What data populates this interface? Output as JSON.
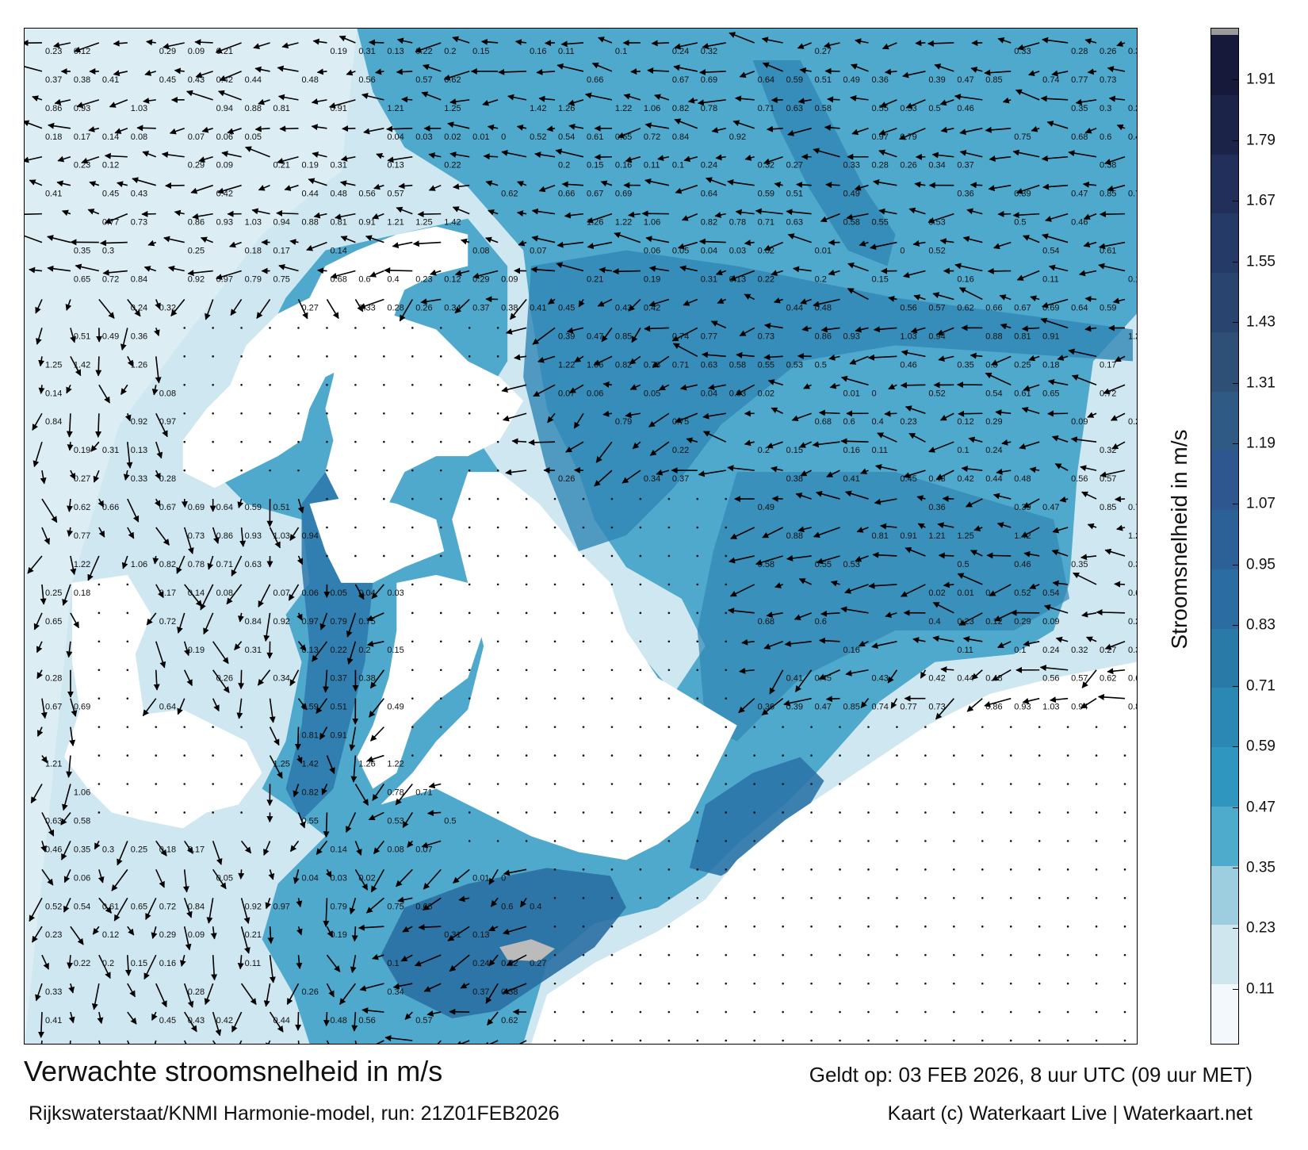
{
  "title": "Verwachte stroomsnelheid in m/s",
  "valid_time": "Geldt op: 03 FEB 2026, 8 uur UTC (09 uur MET)",
  "model_run": "Rijkswaterstaat/KNMI Harmonie-model, run: 21Z01FEB2026",
  "credit": "Kaart (c) Waterkaart Live | Waterkaart.net",
  "colorbar": {
    "label": "Stroomsnelheid in m/s",
    "ticks": [
      "0.11",
      "0.23",
      "0.35",
      "0.47",
      "0.59",
      "0.71",
      "0.83",
      "0.95",
      "1.07",
      "1.19",
      "1.31",
      "1.43",
      "1.55",
      "1.67",
      "1.79",
      "1.91"
    ],
    "range": [
      0,
      2.0
    ],
    "colors": [
      "#f2f8fb",
      "#cfe6ef",
      "#9ccee0",
      "#4fabcc",
      "#2f96bf",
      "#2b88b3",
      "#2a7aa8",
      "#2b6da0",
      "#2c6198",
      "#2e568f",
      "#2f5a84",
      "#2e5077",
      "#28446f",
      "#263a68",
      "#212f5a",
      "#1b2448",
      "#16193a"
    ]
  },
  "icons": {
    "arrow": "current-arrow-icon"
  },
  "speed_labels": [
    {
      "t": "0.23"
    },
    {
      "t": "0.12"
    },
    {
      "t": "0.29"
    },
    {
      "t": "0.09"
    },
    {
      "t": "0.21"
    },
    {
      "t": "0.19"
    },
    {
      "t": "0.31"
    },
    {
      "t": "0.13"
    },
    {
      "t": "0.22"
    },
    {
      "t": "0.2"
    },
    {
      "t": "0.15"
    },
    {
      "t": "0.16"
    },
    {
      "t": "0.11"
    },
    {
      "t": "0.1"
    },
    {
      "t": "0.24"
    },
    {
      "t": "0.32"
    },
    {
      "t": "0.27"
    },
    {
      "t": "0.33"
    },
    {
      "t": "0.28"
    },
    {
      "t": "0.26"
    },
    {
      "t": "0.34"
    },
    {
      "t": "0.37"
    },
    {
      "t": "0.38"
    },
    {
      "t": "0.41"
    },
    {
      "t": "0.45"
    },
    {
      "t": "0.43"
    },
    {
      "t": "0.42"
    },
    {
      "t": "0.44"
    },
    {
      "t": "0.48"
    },
    {
      "t": "0.56"
    },
    {
      "t": "0.57"
    },
    {
      "t": "0.62"
    },
    {
      "t": "0.66"
    },
    {
      "t": "0.67"
    },
    {
      "t": "0.69"
    },
    {
      "t": "0.64"
    },
    {
      "t": "0.59"
    },
    {
      "t": "0.51"
    },
    {
      "t": "0.49"
    },
    {
      "t": "0.36"
    },
    {
      "t": "0.39"
    },
    {
      "t": "0.47"
    },
    {
      "t": "0.85"
    },
    {
      "t": "0.74"
    },
    {
      "t": "0.77"
    },
    {
      "t": "0.73"
    },
    {
      "t": "0.86"
    },
    {
      "t": "0.93"
    },
    {
      "t": "1.03"
    },
    {
      "t": "0.94"
    },
    {
      "t": "0.88"
    },
    {
      "t": "0.81"
    },
    {
      "t": "0.91"
    },
    {
      "t": "1.21"
    },
    {
      "t": "1.25"
    },
    {
      "t": "1.42"
    },
    {
      "t": "1.26"
    },
    {
      "t": "1.22"
    },
    {
      "t": "1.06"
    },
    {
      "t": "0.82"
    },
    {
      "t": "0.78"
    },
    {
      "t": "0.71"
    },
    {
      "t": "0.63"
    },
    {
      "t": "0.58"
    },
    {
      "t": "0.55"
    },
    {
      "t": "0.53"
    },
    {
      "t": "0.5"
    },
    {
      "t": "0.46"
    },
    {
      "t": "0.35"
    },
    {
      "t": "0.3"
    },
    {
      "t": "0.25"
    },
    {
      "t": "0.18"
    },
    {
      "t": "0.17"
    },
    {
      "t": "0.14"
    },
    {
      "t": "0.08"
    },
    {
      "t": "0.07"
    },
    {
      "t": "0.06"
    },
    {
      "t": "0.05"
    },
    {
      "t": "0.04"
    },
    {
      "t": "0.03"
    },
    {
      "t": "0.02"
    },
    {
      "t": "0.01"
    },
    {
      "t": "0"
    },
    {
      "t": "0.52"
    },
    {
      "t": "0.54"
    },
    {
      "t": "0.61"
    },
    {
      "t": "0.65"
    },
    {
      "t": "0.72"
    },
    {
      "t": "0.84"
    },
    {
      "t": "0.92"
    },
    {
      "t": "0.97"
    },
    {
      "t": "0.79"
    },
    {
      "t": "0.75"
    },
    {
      "t": "0.68"
    },
    {
      "t": "0.6"
    },
    {
      "t": "0.4"
    }
  ]
}
